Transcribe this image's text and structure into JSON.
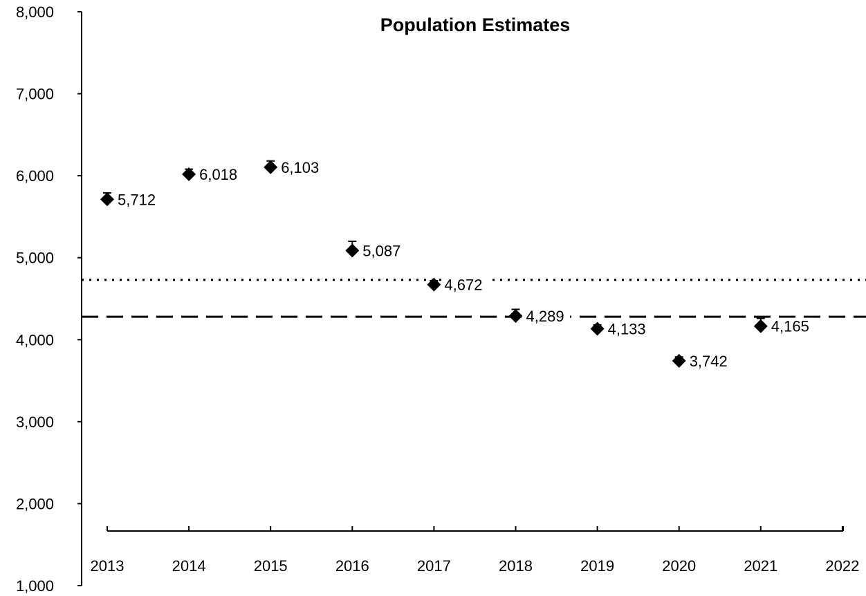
{
  "chart_data": {
    "type": "scatter",
    "title": "Population Estimates",
    "xlabel": "",
    "ylabel": "",
    "categories": [
      "2013",
      "2014",
      "2015",
      "2016",
      "2017",
      "2018",
      "2019",
      "2020",
      "2021",
      "2022"
    ],
    "series": [
      {
        "values": [
          5712,
          6018,
          6103,
          5087,
          4672,
          4289,
          4133,
          3742,
          4165,
          null
        ],
        "value_labels": [
          "5,712",
          "6,018",
          "6,103",
          "5,087",
          "4,672",
          "4,289",
          "4,133",
          "3,742",
          "4,165",
          null
        ],
        "error_upper": [
          5790,
          6080,
          6180,
          5200,
          4720,
          4370,
          4180,
          3790,
          4260,
          null
        ],
        "marker": "diamond",
        "color": "#000000"
      }
    ],
    "reference_lines": [
      {
        "value": 4730,
        "style": "dotted"
      },
      {
        "value": 4280,
        "style": "dashed"
      }
    ],
    "ylim": [
      1000,
      8000
    ],
    "yticks": [
      1000,
      2000,
      3000,
      4000,
      5000,
      6000,
      7000,
      8000
    ],
    "ytick_labels": [
      "1,000",
      "2,000",
      "3,000",
      "4,000",
      "5,000",
      "6,000",
      "7,000",
      "8,000"
    ],
    "grid": false,
    "legend": "none"
  }
}
